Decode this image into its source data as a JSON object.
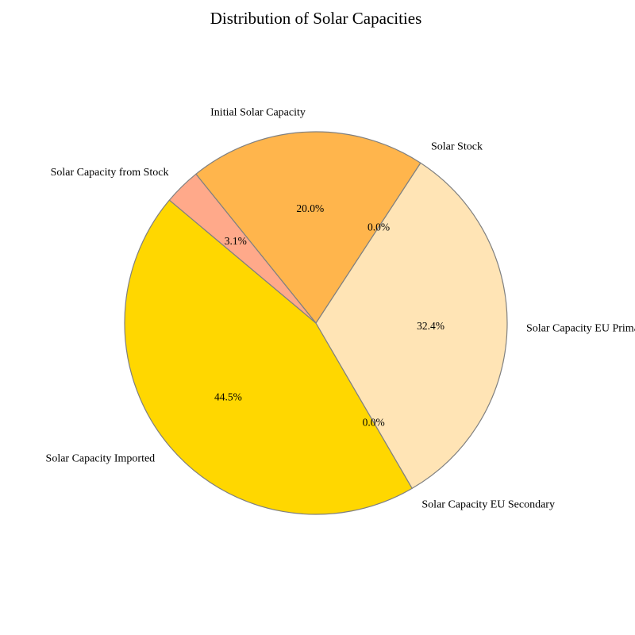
{
  "chart_data": {
    "type": "pie",
    "title": "Distribution of Solar Capacities",
    "slices": [
      {
        "label": "Solar Capacity Imported",
        "value": 44.5,
        "pct_label": "44.5%",
        "color": "#FFD700"
      },
      {
        "label": "Solar Capacity EU Secondary",
        "value": 0.0,
        "pct_label": "0.0%",
        "color": "#FFA500"
      },
      {
        "label": "Solar Capacity EU Primary",
        "value": 32.4,
        "pct_label": "32.4%",
        "color": "#FFE4B5"
      },
      {
        "label": "Solar Stock",
        "value": 0.0,
        "pct_label": "0.0%",
        "color": "#FF8C00"
      },
      {
        "label": "Initial Solar Capacity",
        "value": 20.0,
        "pct_label": "20.0%",
        "color": "#FFB54C"
      },
      {
        "label": "Solar Capacity from Stock",
        "value": 3.1,
        "pct_label": "3.1%",
        "color": "#FFA98A"
      }
    ],
    "start_angle_deg": 140,
    "direction": "counterclockwise",
    "edge_color": "#808080",
    "legend": "none"
  }
}
